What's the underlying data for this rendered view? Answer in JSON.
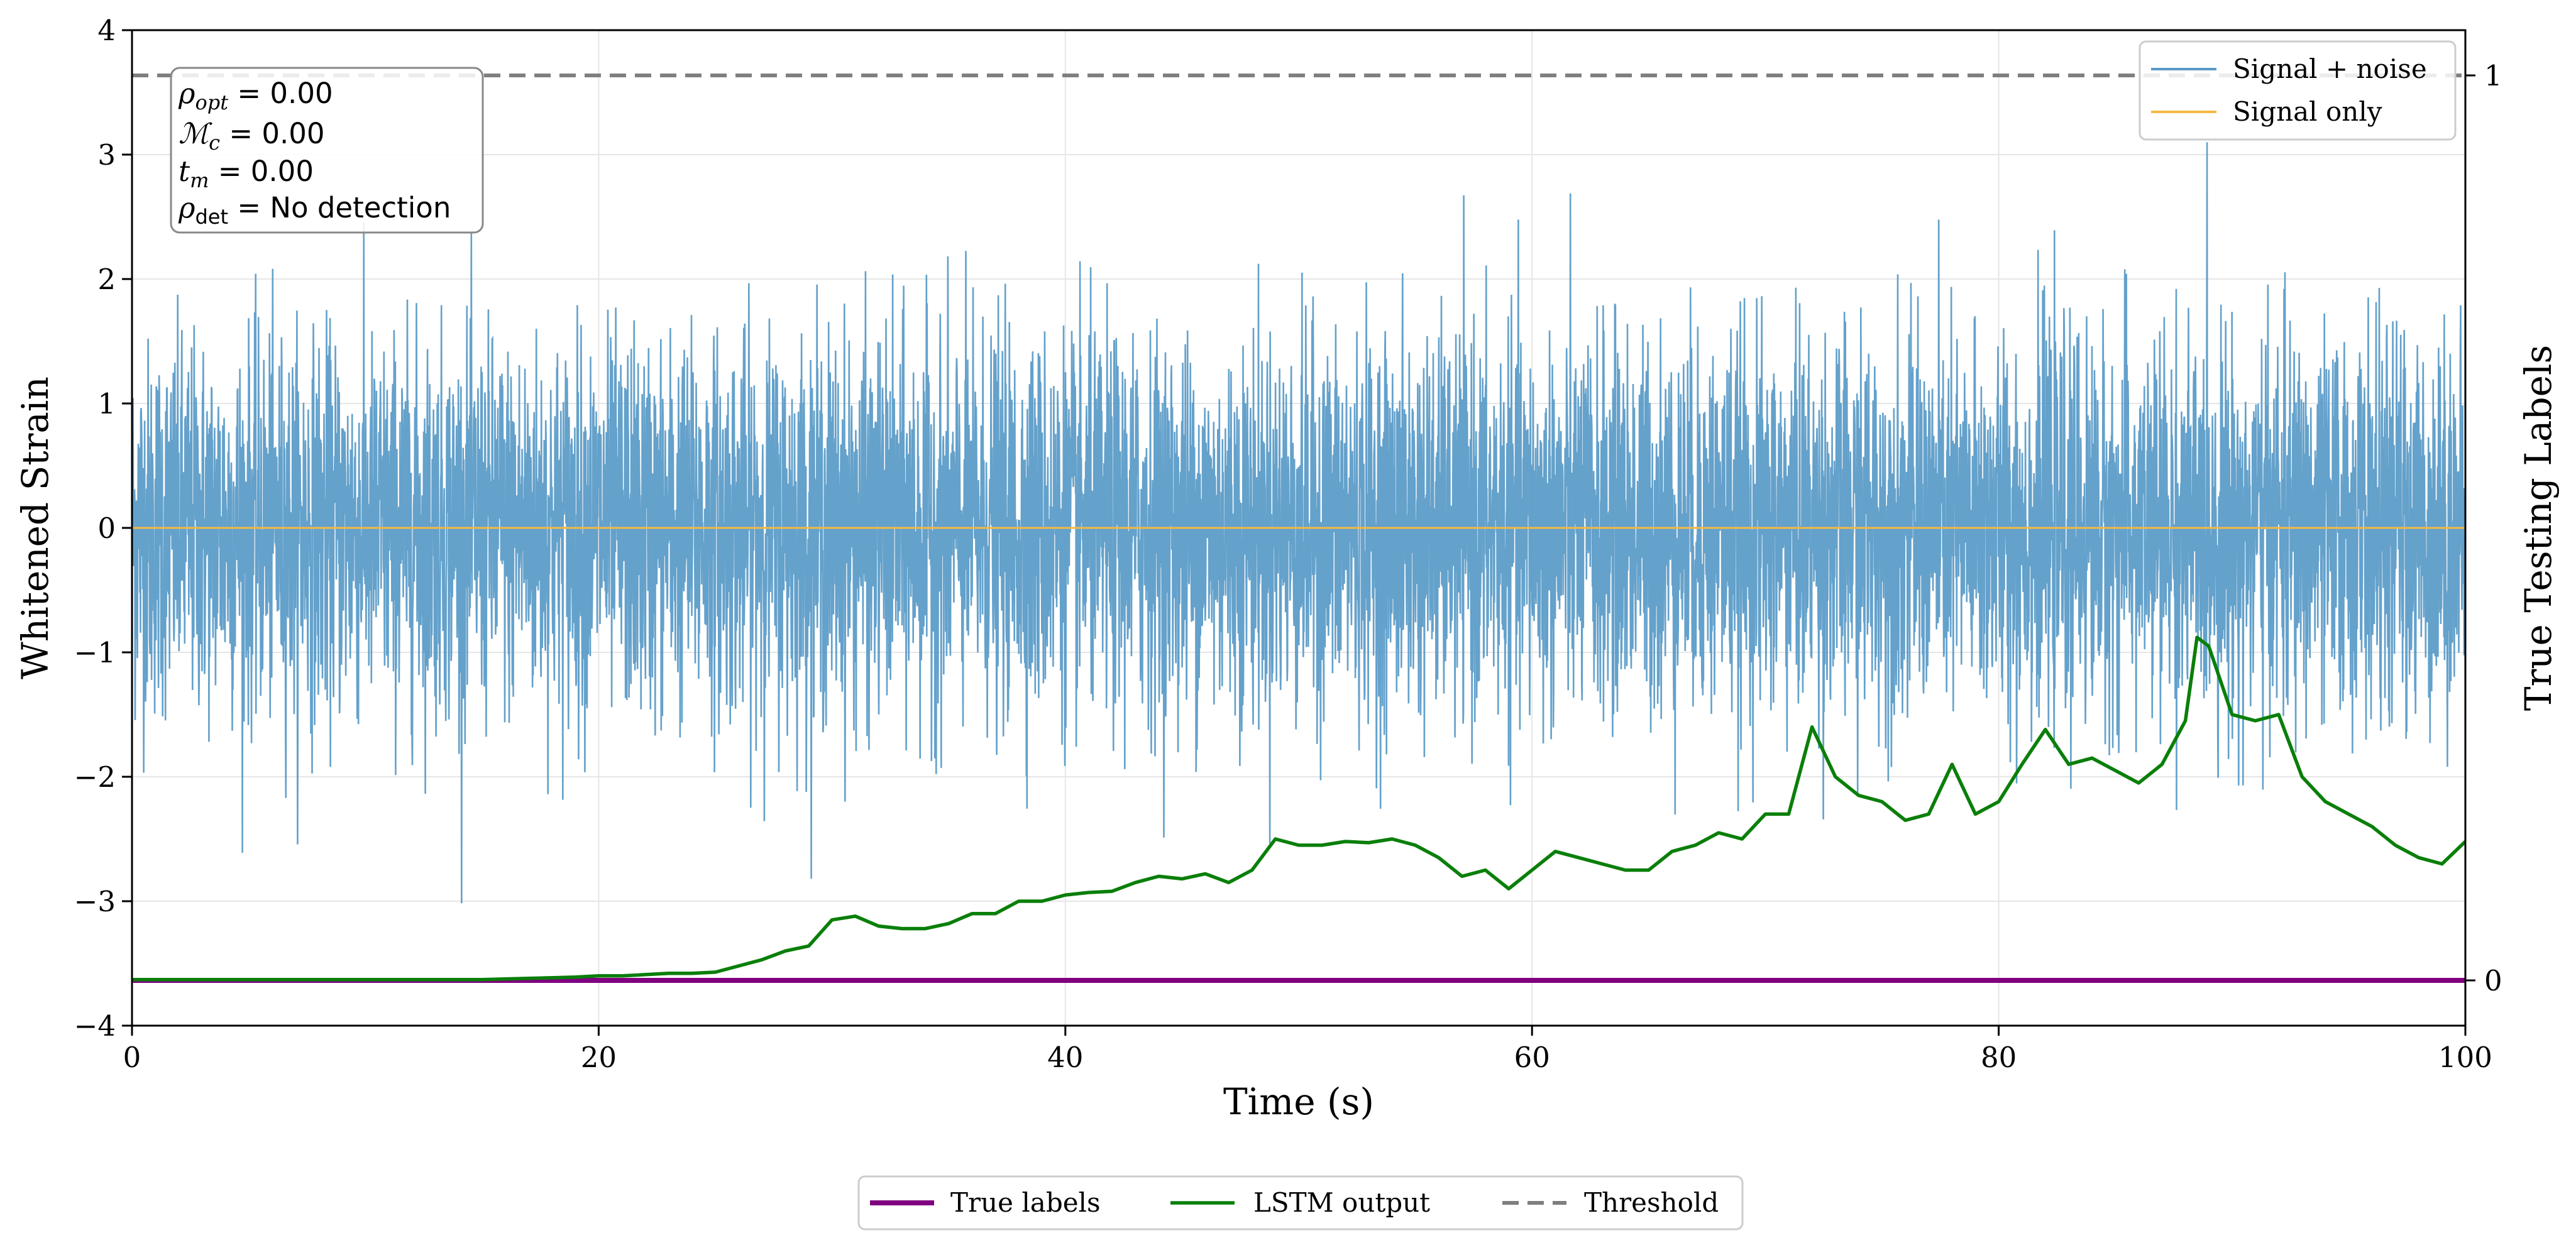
{
  "chart_data": {
    "type": "line",
    "xlabel": "Time (s)",
    "ylabel_left": "Whitened Strain",
    "ylabel_right": "True Testing Labels",
    "xlim": [
      0,
      100
    ],
    "ylim_left": [
      -4,
      4
    ],
    "ylim_right": [
      -0.05,
      1.05
    ],
    "x_ticks": [
      "0",
      "20",
      "40",
      "60",
      "80",
      "100"
    ],
    "y_left_ticks": [
      "−4",
      "−3",
      "−2",
      "−1",
      "0",
      "1",
      "2",
      "3",
      "4"
    ],
    "y_right_ticks": [
      "0",
      "1"
    ],
    "grid": true,
    "annotation": {
      "rho_opt": "ρ",
      "rho_opt_sub": "opt",
      "rho_opt_value": " = 0.00",
      "mc": "ℳ",
      "mc_sub": "c",
      "mc_value": " = 0.00",
      "tm": "t",
      "tm_sub": "m",
      "tm_value": " = 0.00",
      "rho_det": "ρ",
      "rho_det_sub": "det",
      "rho_det_value": " = No detection"
    },
    "legend_upper_right": [
      "Signal + noise",
      "Signal only"
    ],
    "legend_bottom": [
      "True labels",
      "LSTM output",
      "Threshold"
    ],
    "colors": {
      "signal_noise": "#5799c7",
      "signal_only": "#f5b942",
      "true_labels": "#800080",
      "lstm": "#0a7f0a",
      "threshold": "#7f7f7f"
    },
    "series": [
      {
        "name": "Signal + noise",
        "axis": "left",
        "description_kind": "noise",
        "amplitude_sigma": 0.75
      },
      {
        "name": "Signal only",
        "axis": "left",
        "x": [
          0,
          100
        ],
        "y": [
          0,
          0
        ]
      },
      {
        "name": "True labels",
        "axis": "right",
        "x": [
          0,
          100
        ],
        "y": [
          0,
          0
        ]
      },
      {
        "name": "Threshold",
        "axis": "right",
        "x": [
          0,
          100
        ],
        "y": [
          1,
          1
        ]
      },
      {
        "name": "LSTM output",
        "axis": "left",
        "x": [
          0,
          5,
          10,
          15,
          17,
          19,
          20,
          21,
          22,
          23,
          24,
          25,
          26,
          27,
          28,
          29,
          30,
          31,
          32,
          33,
          34,
          35,
          36,
          37,
          38,
          39,
          40,
          41,
          42,
          43,
          44,
          45,
          46,
          47,
          48,
          49,
          50,
          51,
          52,
          53,
          54,
          55,
          56,
          57,
          58,
          59,
          60,
          61,
          62,
          63,
          64,
          65,
          66,
          67,
          68,
          69,
          70,
          71,
          72,
          73,
          74,
          75,
          76,
          77,
          78,
          79,
          80,
          81,
          82,
          83,
          84,
          85,
          86,
          87,
          88,
          88.5,
          89,
          90,
          91,
          92,
          93,
          94,
          95,
          96,
          97,
          98,
          99,
          100
        ],
        "y": [
          -3.63,
          -3.63,
          -3.63,
          -3.63,
          -3.62,
          -3.61,
          -3.6,
          -3.6,
          -3.59,
          -3.58,
          -3.58,
          -3.57,
          -3.52,
          -3.47,
          -3.4,
          -3.36,
          -3.15,
          -3.12,
          -3.2,
          -3.22,
          -3.22,
          -3.18,
          -3.1,
          -3.1,
          -3.0,
          -3.0,
          -2.95,
          -2.93,
          -2.92,
          -2.85,
          -2.8,
          -2.82,
          -2.78,
          -2.85,
          -2.75,
          -2.5,
          -2.55,
          -2.55,
          -2.52,
          -2.53,
          -2.5,
          -2.55,
          -2.65,
          -2.8,
          -2.75,
          -2.9,
          -2.75,
          -2.6,
          -2.65,
          -2.7,
          -2.75,
          -2.75,
          -2.6,
          -2.55,
          -2.45,
          -2.5,
          -2.3,
          -2.3,
          -1.6,
          -2.0,
          -2.15,
          -2.2,
          -2.35,
          -2.3,
          -1.9,
          -2.3,
          -2.2,
          -1.9,
          -1.62,
          -1.9,
          -1.85,
          -1.95,
          -2.05,
          -1.9,
          -1.55,
          -0.88,
          -0.95,
          -1.5,
          -1.55,
          -1.5,
          -2.0,
          -2.2,
          -2.3,
          -2.4,
          -2.55,
          -2.65,
          -2.7,
          -2.52
        ]
      }
    ]
  }
}
